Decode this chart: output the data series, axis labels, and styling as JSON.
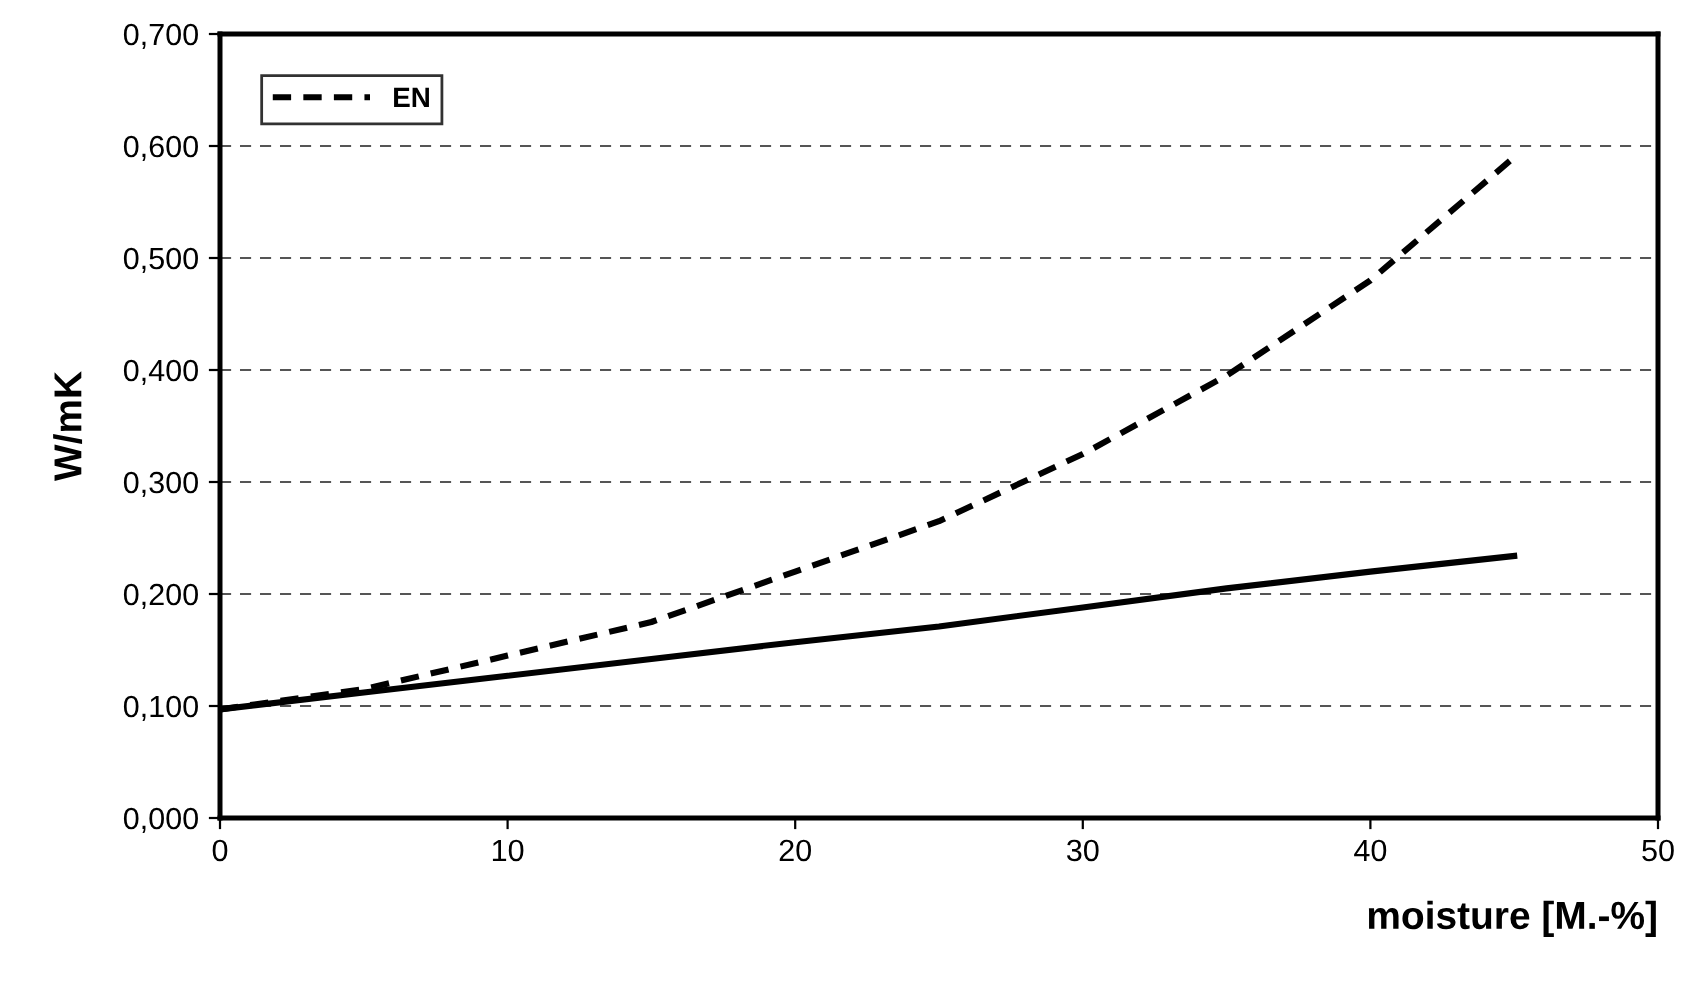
{
  "chart_data": {
    "type": "line",
    "x": [
      0,
      5,
      10,
      15,
      20,
      25,
      30,
      35,
      40,
      45
    ],
    "series": [
      {
        "color": "#000000",
        "line_style": "solid",
        "values": [
          0.097,
          0.112,
          0.127,
          0.142,
          0.157,
          0.171,
          0.188,
          0.205,
          0.22,
          0.234
        ]
      },
      {
        "name": "EN",
        "color": "#000000",
        "line_style": "dashed",
        "values": [
          0.097,
          0.115,
          0.145,
          0.175,
          0.22,
          0.265,
          0.325,
          0.395,
          0.48,
          0.59
        ]
      }
    ],
    "xlabel": "moisture [M.-%]",
    "ylabel": "W/mK",
    "xlim": [
      0,
      50
    ],
    "xticks": [
      0,
      10,
      20,
      30,
      40,
      50
    ],
    "ylim": [
      0,
      0.7
    ],
    "yticks": [
      {
        "value": 0,
        "label": "0,000"
      },
      {
        "value": 0.1,
        "label": "0,100"
      },
      {
        "value": 0.2,
        "label": "0,200"
      },
      {
        "value": 0.3,
        "label": "0,300"
      },
      {
        "value": 0.4,
        "label": "0,400"
      },
      {
        "value": 0.5,
        "label": "0,500"
      },
      {
        "value": 0.6,
        "label": "0,600"
      },
      {
        "value": 0.7,
        "label": "0,700"
      }
    ],
    "grid": "y",
    "legend": "top left",
    "marker": "none"
  }
}
